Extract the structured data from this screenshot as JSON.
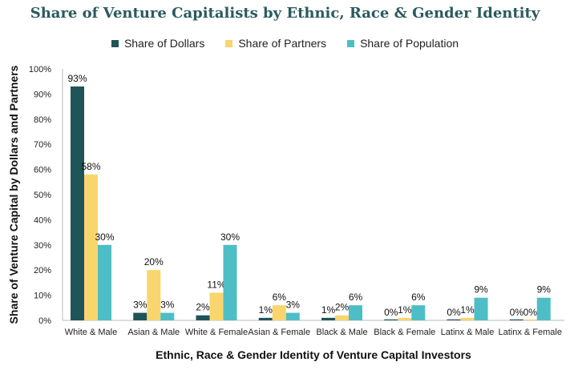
{
  "chart_data": {
    "type": "bar",
    "title": "Share of Venture Capitalists by Ethnic, Race & Gender Identity",
    "xlabel": "Ethnic, Race & Gender Identity of Venture Capital Investors",
    "ylabel": "Share of Venture Capital by Dollars and Partners",
    "ylim": [
      0,
      100
    ],
    "yticks": [
      "0%",
      "10%",
      "20%",
      "30%",
      "40%",
      "50%",
      "60%",
      "70%",
      "80%",
      "90%",
      "100%"
    ],
    "grid": false,
    "legend_position": "top",
    "categories": [
      "White & Male",
      "Asian & Male",
      "White & Female",
      "Asian & Female",
      "Black & Male",
      "Black & Female",
      "Latinx & Male",
      "Latinx & Female"
    ],
    "series": [
      {
        "name": "Share of Dollars",
        "color": "#1f5459",
        "values": [
          93,
          3,
          2,
          1,
          1,
          0,
          0,
          0
        ],
        "labels": [
          "93%",
          "3%",
          "2%",
          "1%",
          "1%",
          "0%",
          "0%",
          "0%"
        ]
      },
      {
        "name": "Share of Partners",
        "color": "#f9d56e",
        "values": [
          58,
          20,
          11,
          6,
          2,
          1,
          1,
          0
        ],
        "labels": [
          "58%",
          "20%",
          "11%",
          "6%",
          "2%",
          "1%",
          "1%",
          "0%"
        ]
      },
      {
        "name": "Share of Population",
        "color": "#4ebec6",
        "values": [
          30,
          3,
          30,
          3,
          6,
          6,
          9,
          9
        ],
        "labels": [
          "30%",
          "3%",
          "30%",
          "3%",
          "6%",
          "6%",
          "9%",
          "9%"
        ]
      }
    ]
  }
}
